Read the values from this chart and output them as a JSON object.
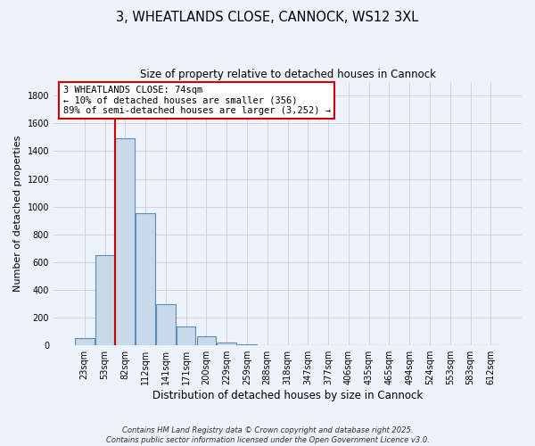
{
  "title": "3, WHEATLANDS CLOSE, CANNOCK, WS12 3XL",
  "subtitle": "Size of property relative to detached houses in Cannock",
  "xlabel": "Distribution of detached houses by size in Cannock",
  "ylabel": "Number of detached properties",
  "bar_labels": [
    "23sqm",
    "53sqm",
    "82sqm",
    "112sqm",
    "141sqm",
    "171sqm",
    "200sqm",
    "229sqm",
    "259sqm",
    "288sqm",
    "318sqm",
    "347sqm",
    "377sqm",
    "406sqm",
    "435sqm",
    "465sqm",
    "494sqm",
    "524sqm",
    "553sqm",
    "583sqm",
    "612sqm"
  ],
  "bar_values": [
    50,
    650,
    1490,
    950,
    295,
    135,
    65,
    20,
    5,
    2,
    1,
    0,
    0,
    0,
    0,
    0,
    0,
    0,
    0,
    0,
    0
  ],
  "bar_color": "#c9d9ec",
  "bar_edge_color": "#5b8db8",
  "ylim": [
    0,
    1900
  ],
  "yticks": [
    0,
    200,
    400,
    600,
    800,
    1000,
    1200,
    1400,
    1600,
    1800
  ],
  "vline_color": "#cc0000",
  "vline_x": 1.5,
  "annotation_title": "3 WHEATLANDS CLOSE: 74sqm",
  "annotation_line1": "← 10% of detached houses are smaller (356)",
  "annotation_line2": "89% of semi-detached houses are larger (3,252) →",
  "annotation_box_color": "#ffffff",
  "annotation_box_edge": "#cc0000",
  "background_color": "#eef2fa",
  "grid_color": "#c8cfe0",
  "footer_line1": "Contains HM Land Registry data © Crown copyright and database right 2025.",
  "footer_line2": "Contains public sector information licensed under the Open Government Licence v3.0."
}
